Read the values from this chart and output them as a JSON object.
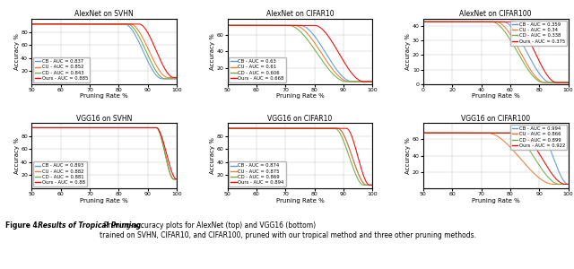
{
  "subplots": [
    {
      "title": "AlexNet on SVHN",
      "xlabel": "Pruning Rate %",
      "ylabel": "Accuracy %",
      "xlim": [
        50,
        100
      ],
      "ylim": [
        0,
        100
      ],
      "xticks": [
        50,
        60,
        70,
        80,
        90,
        100
      ],
      "yticks": [
        20,
        40,
        60,
        80
      ],
      "legend_loc": "lower left",
      "legend": [
        {
          "label": "CB - AUC = 0.837",
          "color": "#5B9BD5"
        },
        {
          "label": "CU - AUC = 0.852",
          "color": "#ED7D31"
        },
        {
          "label": "CD - AUC = 0.843",
          "color": "#70AD47"
        },
        {
          "label": "Ours - AUC = 0.885",
          "color": "#FF0000"
        }
      ],
      "curves": [
        {
          "color": "#5B9BD5",
          "drop_start": 82,
          "drop_end": 95,
          "y_start": 92,
          "y_end": 8
        },
        {
          "color": "#ED7D31",
          "drop_start": 84,
          "drop_end": 97,
          "y_start": 92,
          "y_end": 10
        },
        {
          "color": "#70AD47",
          "drop_start": 83,
          "drop_end": 96,
          "y_start": 92,
          "y_end": 8
        },
        {
          "color": "#FF0000",
          "drop_start": 87,
          "drop_end": 99,
          "y_start": 92,
          "y_end": 10
        }
      ]
    },
    {
      "title": "AlexNet on CIFAR10",
      "xlabel": "Pruning Rate %",
      "ylabel": "Accuracy %",
      "xlim": [
        50,
        100
      ],
      "ylim": [
        0,
        80
      ],
      "xticks": [
        50,
        60,
        70,
        80,
        90,
        100
      ],
      "yticks": [
        20,
        40,
        60
      ],
      "legend_loc": "lower left",
      "legend": [
        {
          "label": "CB - AUC = 0.63",
          "color": "#5B9BD5"
        },
        {
          "label": "CU - AUC = 0.61",
          "color": "#ED7D31"
        },
        {
          "label": "CD - AUC = 0.606",
          "color": "#70AD47"
        },
        {
          "label": "Ours - AUC = 0.668",
          "color": "#FF0000"
        }
      ],
      "curves": [
        {
          "color": "#5B9BD5",
          "drop_start": 75,
          "drop_end": 93,
          "y_start": 72,
          "y_end": 3
        },
        {
          "color": "#ED7D31",
          "drop_start": 73,
          "drop_end": 92,
          "y_start": 72,
          "y_end": 3
        },
        {
          "color": "#70AD47",
          "drop_start": 71,
          "drop_end": 91,
          "y_start": 72,
          "y_end": 3
        },
        {
          "color": "#FF0000",
          "drop_start": 80,
          "drop_end": 97,
          "y_start": 72,
          "y_end": 3
        }
      ]
    },
    {
      "title": "AlexNet on CIFAR100",
      "xlabel": "Pruning Rate %",
      "ylabel": "Accuracy %",
      "xlim": [
        0,
        100
      ],
      "ylim": [
        0,
        45
      ],
      "xticks": [
        0,
        20,
        40,
        60,
        80,
        100
      ],
      "yticks": [
        0,
        10,
        20,
        30,
        40
      ],
      "legend_loc": "upper right",
      "legend": [
        {
          "label": "CB - AUC = 0.359",
          "color": "#5B9BD5"
        },
        {
          "label": "CU - AUC = 0.34",
          "color": "#ED7D31"
        },
        {
          "label": "CD - AUC = 0.338",
          "color": "#70AD47"
        },
        {
          "label": "Ours - AUC = 0.375",
          "color": "#FF0000"
        }
      ],
      "curves": [
        {
          "color": "#5B9BD5",
          "drop_start": 55,
          "drop_end": 88,
          "y_start": 43,
          "y_end": 1
        },
        {
          "color": "#ED7D31",
          "drop_start": 50,
          "drop_end": 84,
          "y_start": 43,
          "y_end": 1
        },
        {
          "color": "#70AD47",
          "drop_start": 47,
          "drop_end": 83,
          "y_start": 43,
          "y_end": 1
        },
        {
          "color": "#FF0000",
          "drop_start": 62,
          "drop_end": 92,
          "y_start": 43,
          "y_end": 1
        }
      ]
    },
    {
      "title": "VGG16 on SVHN",
      "xlabel": "Pruning Rate %",
      "ylabel": "Accuracy %",
      "xlim": [
        50,
        100
      ],
      "ylim": [
        0,
        100
      ],
      "xticks": [
        50,
        60,
        70,
        80,
        90,
        100
      ],
      "yticks": [
        20,
        40,
        60,
        80
      ],
      "legend_loc": "lower left",
      "legend": [
        {
          "label": "CB - AUC = 0.893",
          "color": "#5B9BD5"
        },
        {
          "label": "CU - AUC = 0.882",
          "color": "#ED7D31"
        },
        {
          "label": "CD - AUC = 0.881",
          "color": "#70AD47"
        },
        {
          "label": "Ours - AUC = 0.88",
          "color": "#FF0000"
        }
      ],
      "curves": [
        {
          "color": "#5B9BD5",
          "drop_start": 93,
          "drop_end": 99,
          "y_start": 93,
          "y_end": 14
        },
        {
          "color": "#ED7D31",
          "drop_start": 93,
          "drop_end": 99,
          "y_start": 93,
          "y_end": 14
        },
        {
          "color": "#70AD47",
          "drop_start": 93,
          "drop_end": 99,
          "y_start": 93,
          "y_end": 14
        },
        {
          "color": "#FF0000",
          "drop_start": 93,
          "drop_end": 100,
          "y_start": 93,
          "y_end": 14
        }
      ]
    },
    {
      "title": "VGG16 on CIFAR10",
      "xlabel": "Pruning Rate %",
      "ylabel": "Accuracy %",
      "xlim": [
        50,
        100
      ],
      "ylim": [
        0,
        100
      ],
      "xticks": [
        50,
        60,
        70,
        80,
        90,
        100
      ],
      "yticks": [
        20,
        40,
        60,
        80
      ],
      "legend_loc": "lower left",
      "legend": [
        {
          "label": "CB - AUC = 0.874",
          "color": "#5B9BD5"
        },
        {
          "label": "CU - AUC = 0.875",
          "color": "#ED7D31"
        },
        {
          "label": "CD - AUC = 0.869",
          "color": "#70AD47"
        },
        {
          "label": "Ours - AUC = 0.894",
          "color": "#FF0000"
        }
      ],
      "curves": [
        {
          "color": "#5B9BD5",
          "drop_start": 88,
          "drop_end": 98,
          "y_start": 92,
          "y_end": 5
        },
        {
          "color": "#ED7D31",
          "drop_start": 88,
          "drop_end": 98,
          "y_start": 92,
          "y_end": 5
        },
        {
          "color": "#70AD47",
          "drop_start": 87,
          "drop_end": 97,
          "y_start": 92,
          "y_end": 5
        },
        {
          "color": "#FF0000",
          "drop_start": 91,
          "drop_end": 99,
          "y_start": 92,
          "y_end": 5
        }
      ]
    },
    {
      "title": "VGG16 on CIFAR100",
      "xlabel": "Pruning Rate %",
      "ylabel": "Accuracy %",
      "xlim": [
        50,
        100
      ],
      "ylim": [
        0,
        80
      ],
      "xticks": [
        50,
        60,
        70,
        80,
        90,
        100
      ],
      "yticks": [
        20,
        40,
        60
      ],
      "legend_loc": "upper right",
      "legend": [
        {
          "label": "CB - AUC = 0.994",
          "color": "#5B9BD5"
        },
        {
          "label": "CU - AUC = 0.866",
          "color": "#ED7D31"
        },
        {
          "label": "CD - AUC = 0.899",
          "color": "#70AD47"
        },
        {
          "label": "Ours - AUC = 0.922",
          "color": "#FF0000"
        }
      ],
      "curves": [
        {
          "color": "#5B9BD5",
          "drop_start": 90,
          "drop_end": 100,
          "y_start": 68,
          "y_end": 5
        },
        {
          "color": "#ED7D31",
          "drop_start": 72,
          "drop_end": 95,
          "y_start": 68,
          "y_end": 5
        },
        {
          "color": "#70AD47",
          "drop_start": 80,
          "drop_end": 97,
          "y_start": 68,
          "y_end": 5
        },
        {
          "color": "#FF0000",
          "drop_start": 83,
          "drop_end": 99,
          "y_start": 68,
          "y_end": 5
        }
      ]
    }
  ],
  "caption_plain": "Figure 4:   Results of Tropical Pruning.   Pruning-accuracy plots for AlexNet (top) and VGG16 (bottom)\ntrained on SVHN, CIFAR10, and CIFAR100, pruned with our tropical method and three other pruning methods.",
  "caption_bold_prefix": "Figure 4:",
  "caption_bold_title": "Results of Tropical Pruning.",
  "caption_rest": "  Pruning-accuracy plots for AlexNet (top) and VGG16 (bottom)\ntrained on SVHN, CIFAR10, and CIFAR100, pruned with our tropical method and three other pruning methods.",
  "fig_width": 6.4,
  "fig_height": 3.0,
  "dpi": 100
}
